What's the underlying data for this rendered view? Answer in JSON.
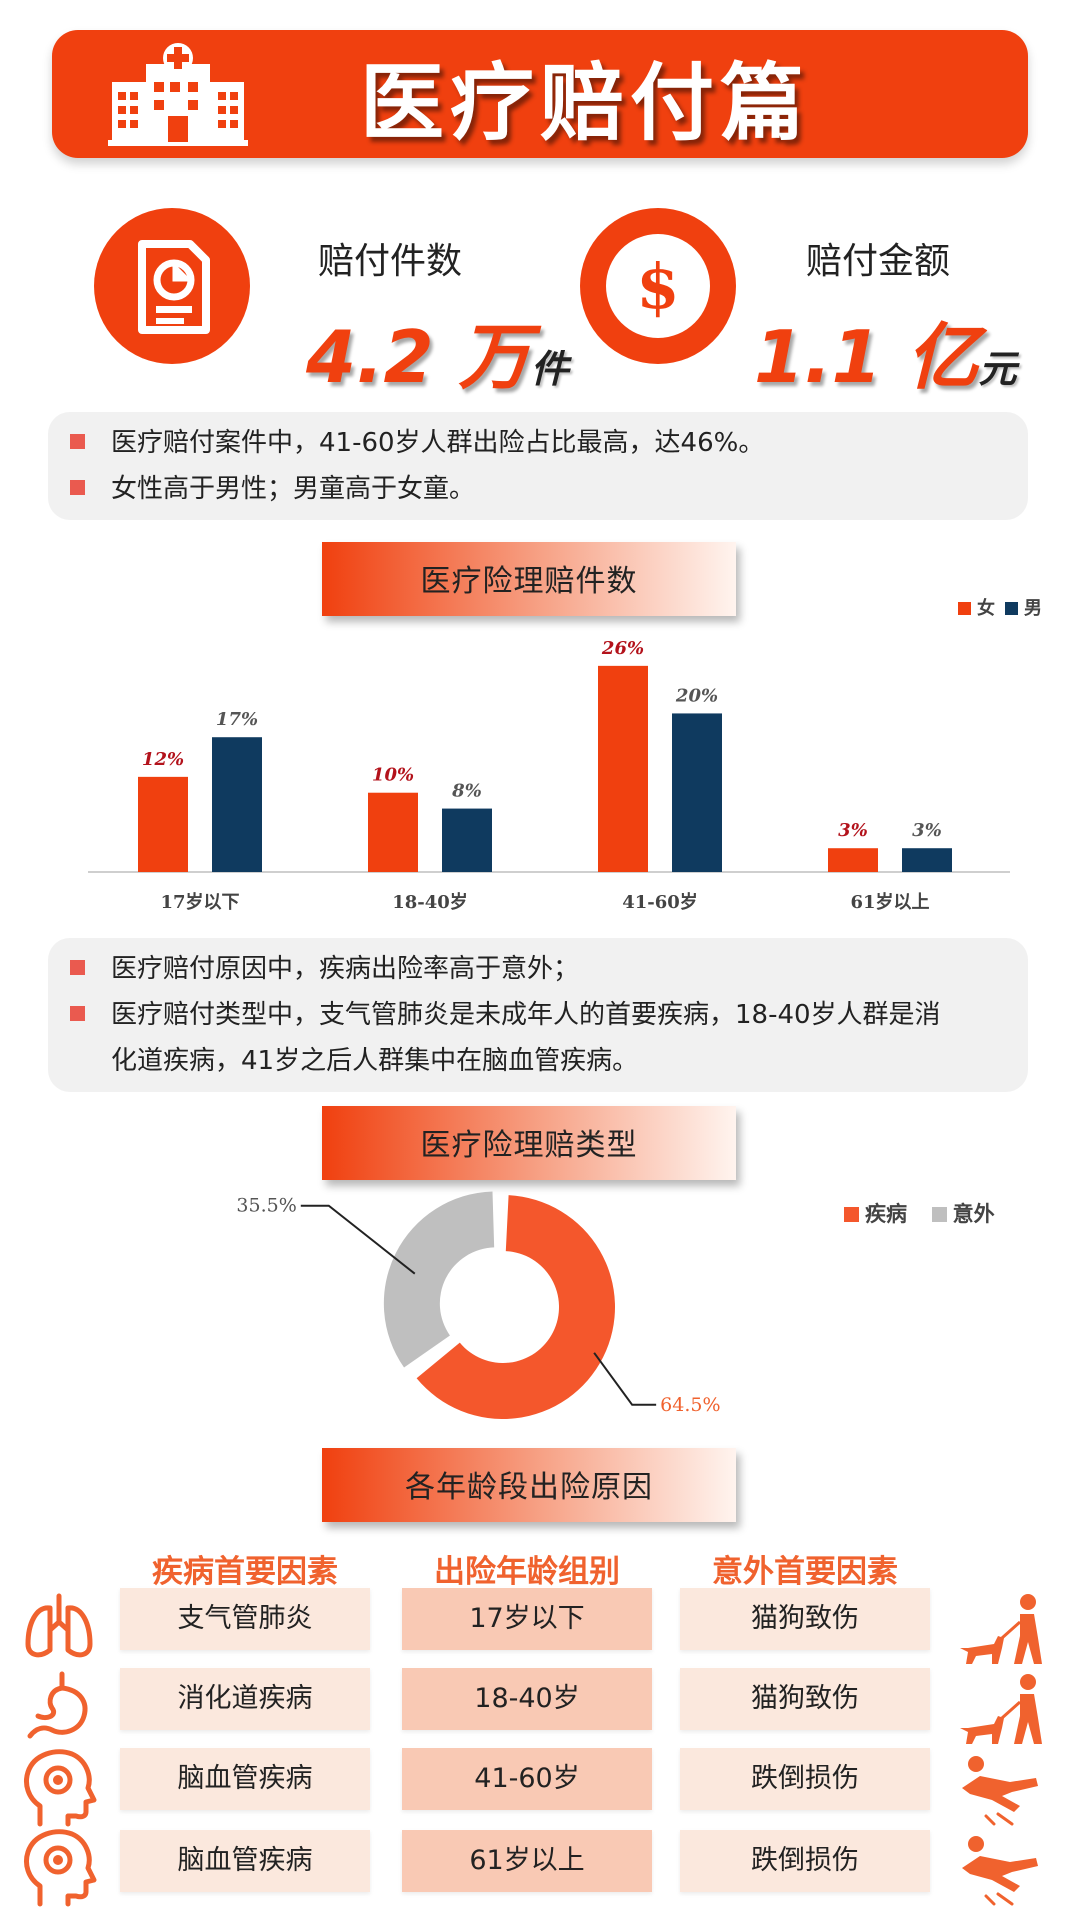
{
  "header": {
    "title": "医疗赔付篇"
  },
  "stats": [
    {
      "label": "赔付件数",
      "value": "4.2",
      "unit_big": "万",
      "unit_small": "件",
      "icon": "document-chart-icon"
    },
    {
      "label": "赔付金额",
      "value": "1.1",
      "unit_big": "亿",
      "unit_small": "元",
      "icon": "dollar-icon",
      "symbol": "$"
    }
  ],
  "notes1": [
    "医疗赔付案件中，41-60岁人群出险占比最高，达46%。",
    "女性高于男性；男童高于女童。"
  ],
  "section1": {
    "title": "医疗险理赔件数"
  },
  "notes2": [
    "医疗赔付原因中，疾病出险率高于意外；",
    "医疗赔付类型中，支气管肺炎是未成年人的首要疾病，18-40岁人群是消",
    "化道疾病，41岁之后人群集中在脑血管疾病。"
  ],
  "section2": {
    "title": "医疗险理赔类型"
  },
  "section3": {
    "title": "各年龄段出险原因"
  },
  "colors": {
    "accent": "#f0400f",
    "navy": "#0f3a5f",
    "gray": "#bfbfbf",
    "pie_orange": "#f4572c"
  },
  "chart_data": [
    {
      "type": "bar",
      "title": "",
      "categories": [
        "17岁以下",
        "18-40岁",
        "41-60岁",
        "61岁以上"
      ],
      "series": [
        {
          "name": "女",
          "values": [
            12,
            10,
            26,
            3
          ],
          "labels": [
            "12%",
            "10%",
            "26%",
            "3%"
          ],
          "color": "#f0400f"
        },
        {
          "name": "男",
          "values": [
            17,
            8,
            20,
            3
          ],
          "labels": [
            "17%",
            "8%",
            "20%",
            "3%"
          ],
          "color": "#0f3a5f"
        }
      ],
      "ylim": [
        0,
        28
      ],
      "grid": false,
      "legend": "top-right"
    },
    {
      "type": "pie",
      "donut": true,
      "categories": [
        "疾病",
        "意外"
      ],
      "values": [
        64.5,
        35.5
      ],
      "labels": [
        "64.5%",
        "35.5%"
      ],
      "colors": [
        "#f4572c",
        "#bfbfbf"
      ],
      "legend": "top-right"
    }
  ],
  "table": {
    "headers": [
      "疾病首要因素",
      "出险年龄组别",
      "意外首要因素"
    ],
    "rows": [
      {
        "disease": "支气管肺炎",
        "age": "17岁以下",
        "accident": "猫狗致伤",
        "disease_icon": "lungs-icon",
        "accident_icon": "dog-walker-icon"
      },
      {
        "disease": "消化道疾病",
        "age": "18-40岁",
        "accident": "猫狗致伤",
        "disease_icon": "stomach-icon",
        "accident_icon": "dog-walker-icon"
      },
      {
        "disease": "脑血管疾病",
        "age": "41-60岁",
        "accident": "跌倒损伤",
        "disease_icon": "brain-head-icon",
        "accident_icon": "falling-person-icon"
      },
      {
        "disease": "脑血管疾病",
        "age": "61岁以上",
        "accident": "跌倒损伤",
        "disease_icon": "brain-head-icon",
        "accident_icon": "falling-person-icon"
      }
    ]
  }
}
